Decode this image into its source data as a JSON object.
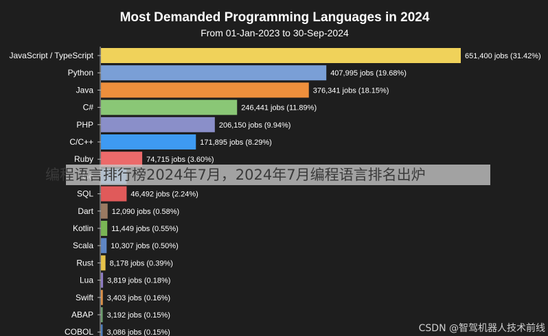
{
  "chart_data": {
    "type": "bar",
    "orientation": "horizontal",
    "title": "Most Demanded Programming Languages in 2024",
    "subtitle": "From 01-Jan-2023 to 30-Sep-2024",
    "categories": [
      "JavaScript / TypeScript",
      "Python",
      "Java",
      "C#",
      "PHP",
      "C/C++",
      "Ruby",
      "Go",
      "SQL",
      "Dart",
      "Kotlin",
      "Scala",
      "Rust",
      "Lua",
      "Swift",
      "ABAP",
      "COBOL"
    ],
    "values": [
      651400,
      407995,
      376341,
      246441,
      206150,
      171895,
      74715,
      46492,
      46492,
      12090,
      11449,
      10307,
      8178,
      3819,
      3403,
      3192,
      3086
    ],
    "labels": [
      "651,400 jobs (31.42%)",
      "407,995 jobs (19.68%)",
      "376,341 jobs (18.15%)",
      "246,441 jobs (11.89%)",
      "206,150 jobs (9.94%)",
      "171,895 jobs (8.29%)",
      "74,715 jobs (3.60%)",
      "",
      "46,492 jobs (2.24%)",
      "12,090 jobs (0.58%)",
      "11,449 jobs (0.55%)",
      "10,307 jobs (0.50%)",
      "8,178 jobs (0.39%)",
      "3,819 jobs (0.18%)",
      "3,403 jobs (0.16%)",
      "3,192 jobs (0.15%)",
      "3,086 jobs (0.15%)"
    ],
    "colors": [
      "#f0d25a",
      "#7a9fd6",
      "#ee8f3c",
      "#8ac776",
      "#8a8fc9",
      "#3e9af2",
      "#ec6a6a",
      "#6aa0d8",
      "#e05a5a",
      "#9a7a62",
      "#7ab555",
      "#5f86c4",
      "#e6c24a",
      "#8e7cc3",
      "#e0934a",
      "#6fa070",
      "#4f7fc0"
    ],
    "xlim": [
      0,
      651400
    ],
    "grid": false,
    "legend": "none"
  },
  "overlay_text": "编程语言排行榜2024年7月，2024年7月编程语言排名出炉",
  "watermark": "CSDN @智驾机器人技术前线"
}
